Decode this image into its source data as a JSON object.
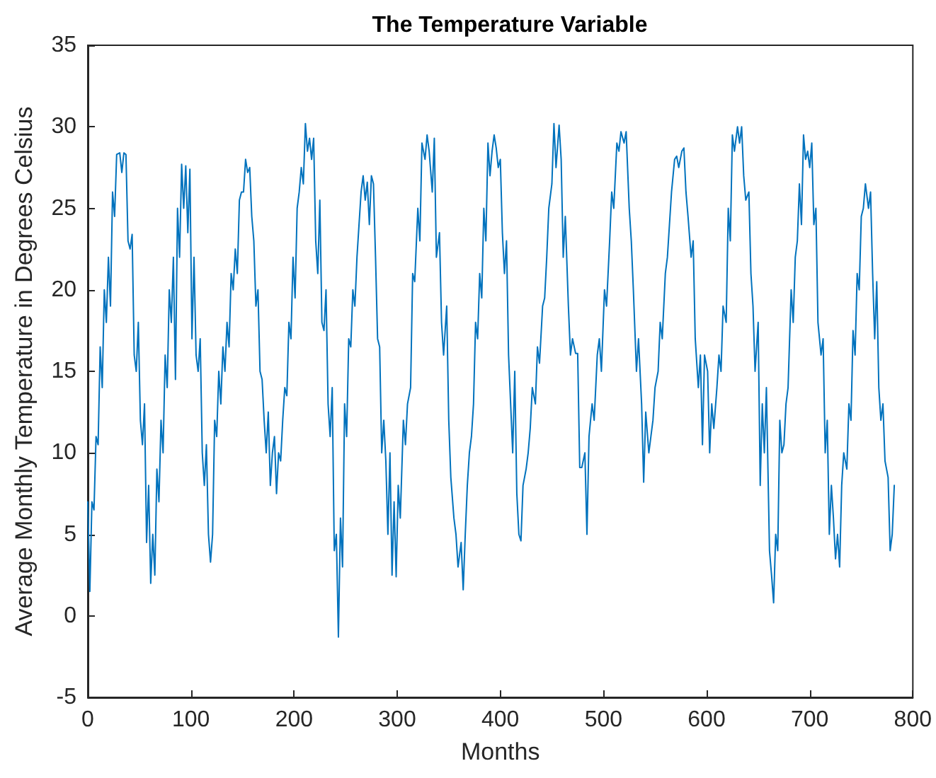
{
  "chart_data": {
    "type": "line",
    "title": "The Temperature Variable",
    "xlabel": "Months",
    "ylabel": "Average Monthly Temperature in Degrees Celsius",
    "xlim": [
      0,
      800
    ],
    "xticks": [
      0,
      100,
      200,
      300,
      400,
      500,
      600,
      700,
      800
    ],
    "ylim": [
      -5,
      35
    ],
    "yticks": [
      -5,
      0,
      5,
      10,
      15,
      20,
      25,
      30,
      35
    ],
    "grid": false,
    "marker": "none",
    "line_style": "solid",
    "series": [
      {
        "color": "#0072bd",
        "x": [
          0,
          2,
          4,
          6,
          8,
          10,
          12,
          14,
          16,
          18,
          20,
          22,
          24,
          26,
          28,
          31,
          33,
          35,
          37,
          39,
          41,
          43,
          45,
          47,
          49,
          51,
          53,
          55,
          57,
          59,
          61,
          63,
          65,
          67,
          69,
          71,
          73,
          75,
          77,
          79,
          81,
          83,
          85,
          87,
          89,
          91,
          93,
          95,
          97,
          99,
          101,
          103,
          105,
          107,
          109,
          111,
          113,
          115,
          117,
          119,
          121,
          123,
          125,
          127,
          129,
          131,
          133,
          135,
          137,
          139,
          141,
          143,
          145,
          147,
          149,
          151,
          153,
          155,
          157,
          159,
          161,
          163,
          165,
          167,
          169,
          171,
          173,
          175,
          177,
          179,
          181,
          183,
          185,
          187,
          189,
          191,
          193,
          195,
          197,
          199,
          201,
          203,
          205,
          207,
          209,
          211,
          213,
          215,
          217,
          219,
          221,
          223,
          225,
          227,
          229,
          231,
          233,
          235,
          237,
          239,
          241,
          243,
          245,
          247,
          249,
          251,
          253,
          255,
          257,
          259,
          261,
          263,
          265,
          267,
          269,
          271,
          273,
          275,
          277,
          279,
          281,
          283,
          285,
          287,
          289,
          291,
          293,
          295,
          297,
          299,
          301,
          303,
          306,
          308,
          310,
          313,
          315,
          317,
          320,
          322,
          324,
          327,
          329,
          331,
          334,
          336,
          338,
          341,
          343,
          345,
          348,
          350,
          352,
          355,
          357,
          359,
          362,
          364,
          366,
          368,
          370,
          372,
          374,
          376,
          378,
          380,
          382,
          384,
          386,
          388,
          390,
          392,
          394,
          396,
          398,
          400,
          402,
          404,
          406,
          408,
          410,
          412,
          414,
          416,
          418,
          420,
          422,
          425,
          427,
          429,
          431,
          434,
          436,
          438,
          441,
          443,
          445,
          447,
          450,
          452,
          454,
          457,
          459,
          461,
          463,
          466,
          468,
          470,
          473,
          475,
          477,
          479,
          482,
          484,
          486,
          489,
          491,
          494,
          496,
          498,
          501,
          503,
          506,
          508,
          510,
          513,
          515,
          517,
          520,
          522,
          525,
          527,
          529,
          532,
          534,
          537,
          539,
          541,
          544,
          546,
          548,
          550,
          553,
          555,
          557,
          560,
          562,
          564,
          566,
          569,
          571,
          573,
          576,
          578,
          580,
          582,
          585,
          587,
          589,
          592,
          594,
          596,
          598,
          601,
          603,
          605,
          607,
          610,
          612,
          614,
          616,
          619,
          621,
          623,
          625,
          627,
          630,
          632,
          634,
          636,
          638,
          641,
          643,
          645,
          647,
          650,
          652,
          654,
          656,
          658,
          661,
          663,
          665,
          667,
          669,
          671,
          673,
          675,
          677,
          679,
          682,
          684,
          686,
          688,
          690,
          692,
          694,
          696,
          698,
          700,
          702,
          704,
          706,
          708,
          711,
          713,
          715,
          717,
          719,
          721,
          723,
          725,
          727,
          729,
          731,
          733,
          736,
          738,
          740,
          742,
          744,
          746,
          748,
          750,
          752,
          754,
          757,
          759,
          761,
          763,
          765,
          767,
          769,
          771,
          773,
          776,
          778,
          780,
          782
        ],
        "values": [
          7,
          1.5,
          7,
          6.5,
          11,
          10.5,
          16.5,
          14,
          20,
          18,
          22,
          19,
          26,
          24.5,
          28.3,
          28.4,
          27.2,
          28.4,
          28.3,
          23,
          22.5,
          23.4,
          16,
          15,
          18,
          12,
          10.5,
          13,
          4.5,
          8,
          2,
          5,
          2.5,
          9,
          7,
          12,
          10,
          16,
          14,
          20,
          18,
          22,
          14.5,
          25,
          22,
          27.7,
          25,
          27.6,
          23.5,
          27.4,
          17,
          22,
          16,
          15,
          17,
          10,
          8,
          10.5,
          5,
          3.3,
          5,
          12,
          11,
          15,
          13,
          16.5,
          15,
          18,
          16.5,
          21,
          20,
          22.5,
          21,
          25.5,
          26,
          26,
          28,
          27.2,
          27.5,
          24.5,
          23,
          19,
          20,
          15,
          14.5,
          12,
          10,
          12.5,
          8,
          10,
          11,
          7.5,
          10,
          9.5,
          12,
          14,
          13.5,
          18,
          17,
          22,
          19.5,
          25,
          26,
          27.5,
          26.5,
          30.2,
          28.5,
          29.3,
          28,
          29.3,
          23,
          21,
          25.5,
          18,
          17.5,
          20,
          13,
          11,
          14,
          4,
          5,
          -1.3,
          6,
          3,
          13,
          11,
          17,
          16.5,
          20,
          19,
          22,
          24,
          26,
          27,
          25.5,
          26.6,
          24,
          27,
          26.5,
          22,
          17,
          16.5,
          10,
          12,
          9.5,
          5,
          10,
          2.5,
          7,
          2.4,
          8,
          6,
          12,
          10.5,
          13,
          14,
          21,
          20.5,
          25,
          23,
          29,
          28,
          29.5,
          28.5,
          26,
          29.3,
          22,
          23.5,
          18,
          16,
          19,
          12,
          8.5,
          6,
          5,
          3,
          4.5,
          1.6,
          5,
          8,
          10,
          11,
          13,
          18,
          17,
          21,
          19.5,
          25,
          23,
          29,
          27,
          28.5,
          29.5,
          28.7,
          27.5,
          28,
          23.5,
          21,
          23,
          16,
          13,
          10,
          15,
          7.5,
          5,
          4.6,
          8,
          9,
          10,
          11.5,
          14,
          13,
          16.5,
          15.5,
          19,
          19.5,
          22,
          25,
          26.5,
          30.2,
          27.5,
          30.1,
          28,
          22,
          24.5,
          19,
          16,
          17,
          16.1,
          16.1,
          9.1,
          9.1,
          10,
          5,
          11,
          13,
          12,
          16,
          17,
          15,
          20,
          19,
          23,
          26,
          25,
          29,
          28.5,
          29.7,
          29,
          29.7,
          25,
          23,
          20,
          15,
          17,
          13,
          8.2,
          12.5,
          10,
          11,
          12,
          14,
          15,
          18,
          17,
          21,
          22,
          24,
          26,
          28,
          28.2,
          27.5,
          28.5,
          28.7,
          26,
          24.5,
          22,
          23,
          17,
          14,
          16,
          10.5,
          16,
          15,
          10,
          13,
          11.5,
          14,
          16,
          15,
          19,
          18,
          25,
          23,
          29.5,
          28.5,
          30,
          29,
          30,
          27,
          25.5,
          26,
          21,
          19,
          15,
          18,
          8,
          13,
          10,
          14,
          4,
          2.5,
          0.8,
          5,
          4,
          12,
          10,
          10.5,
          13,
          14,
          20,
          18,
          22,
          23,
          26.5,
          24,
          29.5,
          28,
          28.5,
          27.5,
          29,
          24,
          25,
          18,
          16,
          17,
          10,
          12,
          5,
          8,
          6,
          3.5,
          5,
          3,
          8,
          10,
          9,
          13,
          12,
          17.5,
          16,
          21,
          20,
          24.5,
          25,
          26.5,
          25,
          26,
          21,
          17,
          20.5,
          14,
          12,
          13,
          9.5,
          8.5,
          4,
          5,
          8
        ]
      }
    ]
  }
}
